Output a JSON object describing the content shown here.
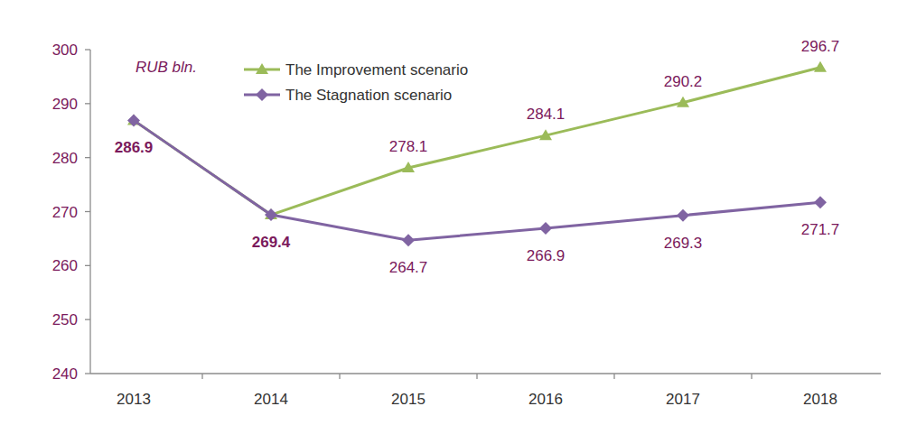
{
  "chart_data": {
    "type": "line",
    "y_label": "RUB bln.",
    "categories": [
      "2013",
      "2014",
      "2015",
      "2016",
      "2017",
      "2018"
    ],
    "series": [
      {
        "name": "The Improvement scenario",
        "color": "#9bbb59",
        "marker": "triangle",
        "values": [
          286.9,
          269.4,
          278.1,
          284.1,
          290.2,
          296.7
        ],
        "value_labels": [
          null,
          null,
          "278.1",
          "284.1",
          "290.2",
          "296.7"
        ]
      },
      {
        "name": "The Stagnation scenario",
        "color": "#8064a2",
        "marker": "diamond",
        "values": [
          286.9,
          269.4,
          264.7,
          266.9,
          269.3,
          271.7
        ]
      }
    ],
    "ylim": [
      240,
      300
    ],
    "yticks": [
      240,
      250,
      260,
      270,
      280,
      290,
      300
    ],
    "grid": false,
    "legend": "top",
    "data_labels": true
  }
}
